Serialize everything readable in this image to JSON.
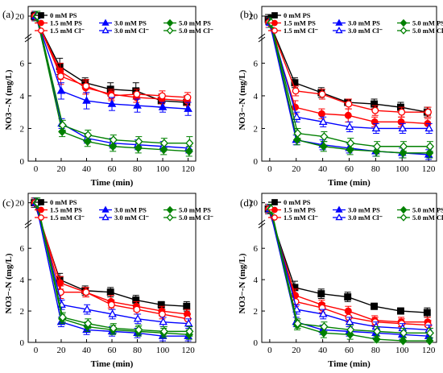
{
  "colors": {
    "0 mM PS": "#000000",
    "1.5": "#ff0000",
    "3.0": "#0000ff",
    "5.0": "#008000"
  },
  "chart_data": [
    {
      "type": "line",
      "panel_label": "(a)",
      "xlabel": "Time (min)",
      "ylabel": "NO3−-N (mg/L)",
      "x": [
        0,
        20,
        40,
        60,
        80,
        100,
        120
      ],
      "x_ticks": [
        "0",
        "20",
        "40",
        "60",
        "80",
        "100",
        "120"
      ],
      "y_ticks_lower": [
        "0",
        "2",
        "4",
        "6"
      ],
      "y_ticks_upper": [
        "20"
      ],
      "ylim_lower": [
        0,
        7.5
      ],
      "ylim_upper": [
        14,
        23
      ],
      "axis_break": true,
      "legend": "top",
      "series": [
        {
          "name": "0 mM PS",
          "color": "#000000",
          "marker": "square",
          "filled": true,
          "values": [
            20.0,
            5.8,
            4.8,
            4.4,
            4.3,
            3.7,
            3.6
          ],
          "err": [
            1.2,
            0.5,
            0.3,
            0.4,
            0.5,
            0.4,
            0.4
          ]
        },
        {
          "name": "1.5 mM PS",
          "color": "#ff0000",
          "marker": "circle",
          "filled": true,
          "values": [
            20.0,
            5.5,
            4.5,
            4.1,
            3.9,
            3.8,
            3.7
          ],
          "err": [
            1.5,
            0.5,
            0.4,
            0.3,
            0.3,
            0.3,
            0.3
          ]
        },
        {
          "name": "1.5 mM Cl⁻",
          "color": "#ff0000",
          "marker": "circle",
          "filled": false,
          "values": [
            20.0,
            5.2,
            4.6,
            4.0,
            4.1,
            4.0,
            3.9
          ],
          "err": [
            1.5,
            0.5,
            0.4,
            0.3,
            0.3,
            0.3,
            0.3
          ]
        },
        {
          "name": "3.0 mM PS",
          "color": "#0000ff",
          "marker": "triangle",
          "filled": true,
          "values": [
            20.0,
            4.3,
            3.7,
            3.5,
            3.4,
            3.3,
            3.2
          ],
          "err": [
            1.5,
            0.5,
            0.5,
            0.4,
            0.4,
            0.3,
            0.4
          ]
        },
        {
          "name": "3.0 mM Cl⁻",
          "color": "#0000ff",
          "marker": "triangle",
          "filled": false,
          "values": [
            20.0,
            2.3,
            1.4,
            1.1,
            1.0,
            0.9,
            0.8
          ],
          "err": [
            1.5,
            0.3,
            0.3,
            0.3,
            0.3,
            0.3,
            0.3
          ]
        },
        {
          "name": "5.0 mM PS",
          "color": "#008000",
          "marker": "diamond",
          "filled": true,
          "values": [
            20.0,
            1.8,
            1.2,
            0.9,
            0.8,
            0.7,
            0.6
          ],
          "err": [
            1.5,
            0.3,
            0.3,
            0.3,
            0.3,
            0.3,
            0.3
          ]
        },
        {
          "name": "5.0 mM Cl⁻",
          "color": "#008000",
          "marker": "diamond",
          "filled": false,
          "values": [
            20.0,
            2.2,
            1.6,
            1.3,
            1.2,
            1.1,
            1.1
          ],
          "err": [
            1.5,
            0.3,
            0.3,
            0.3,
            0.3,
            0.3,
            0.4
          ]
        }
      ]
    },
    {
      "type": "line",
      "panel_label": "(b)",
      "xlabel": "Time (min)",
      "ylabel": "NO3−-N (mg/L)",
      "x": [
        0,
        20,
        40,
        60,
        80,
        100,
        120
      ],
      "x_ticks": [
        "0",
        "20",
        "40",
        "60",
        "80",
        "100",
        "120"
      ],
      "y_ticks_lower": [
        "0",
        "2",
        "4",
        "6"
      ],
      "y_ticks_upper": [
        "20"
      ],
      "ylim_lower": [
        0,
        7.5
      ],
      "ylim_upper": [
        14,
        23
      ],
      "axis_break": true,
      "legend": "top",
      "series": [
        {
          "name": "0 mM PS",
          "color": "#000000",
          "marker": "square",
          "filled": true,
          "values": [
            19.0,
            4.8,
            4.2,
            3.6,
            3.5,
            3.3,
            3.0
          ],
          "err": [
            1.5,
            0.3,
            0.3,
            0.2,
            0.3,
            0.3,
            0.3
          ]
        },
        {
          "name": "1.5 mM PS",
          "color": "#ff0000",
          "marker": "circle",
          "filled": true,
          "values": [
            18.0,
            3.3,
            2.9,
            2.8,
            2.4,
            2.4,
            2.3
          ],
          "err": [
            1.5,
            0.4,
            0.3,
            0.4,
            0.3,
            0.3,
            0.3
          ]
        },
        {
          "name": "1.5 mM Cl⁻",
          "color": "#ff0000",
          "marker": "circle",
          "filled": false,
          "values": [
            18.0,
            4.3,
            4.1,
            3.5,
            3.1,
            3.0,
            3.0
          ],
          "err": [
            1.5,
            0.3,
            0.3,
            0.3,
            0.3,
            0.3,
            0.3
          ]
        },
        {
          "name": "3.0 mM PS",
          "color": "#0000ff",
          "marker": "triangle",
          "filled": true,
          "values": [
            18.0,
            1.3,
            1.0,
            0.8,
            0.6,
            0.5,
            0.4
          ],
          "err": [
            1.5,
            0.3,
            0.3,
            0.3,
            0.3,
            0.3,
            0.3
          ]
        },
        {
          "name": "3.0 mM Cl⁻",
          "color": "#0000ff",
          "marker": "triangle",
          "filled": false,
          "values": [
            18.0,
            2.7,
            2.4,
            2.1,
            2.0,
            2.0,
            2.0
          ],
          "err": [
            1.5,
            0.3,
            0.3,
            0.3,
            0.3,
            0.3,
            0.3
          ]
        },
        {
          "name": "5.0 mM PS",
          "color": "#008000",
          "marker": "diamond",
          "filled": true,
          "values": [
            18.0,
            1.3,
            0.9,
            0.7,
            0.6,
            0.5,
            0.5
          ],
          "err": [
            1.5,
            0.3,
            0.3,
            0.3,
            0.3,
            0.3,
            0.3
          ]
        },
        {
          "name": "5.0 mM Cl⁻",
          "color": "#008000",
          "marker": "diamond",
          "filled": false,
          "values": [
            18.0,
            1.7,
            1.5,
            1.1,
            0.9,
            0.9,
            0.9
          ],
          "err": [
            1.5,
            0.3,
            0.3,
            0.3,
            0.3,
            0.3,
            0.3
          ]
        }
      ]
    },
    {
      "type": "line",
      "panel_label": "(c)",
      "xlabel": "Time (min)",
      "ylabel": "NO3−-N (mg/L)",
      "x": [
        0,
        20,
        40,
        60,
        80,
        100,
        120
      ],
      "x_ticks": [
        "0",
        "20",
        "40",
        "60",
        "80",
        "100",
        "120"
      ],
      "y_ticks_lower": [
        "0",
        "2",
        "4",
        "6"
      ],
      "y_ticks_upper": [
        "20"
      ],
      "ylim_lower": [
        0,
        7.5
      ],
      "ylim_upper": [
        14,
        23
      ],
      "axis_break": true,
      "legend": "top",
      "series": [
        {
          "name": "0 mM PS",
          "color": "#000000",
          "marker": "square",
          "filled": true,
          "values": [
            20.0,
            4.0,
            3.3,
            3.2,
            2.7,
            2.4,
            2.3
          ],
          "err": [
            1.5,
            0.4,
            0.3,
            0.3,
            0.3,
            0.2,
            0.3
          ]
        },
        {
          "name": "1.5 mM PS",
          "color": "#ff0000",
          "marker": "circle",
          "filled": true,
          "values": [
            20.0,
            3.8,
            3.2,
            2.6,
            2.3,
            2.0,
            1.8
          ],
          "err": [
            1.5,
            0.4,
            0.3,
            0.4,
            0.3,
            0.3,
            0.3
          ]
        },
        {
          "name": "1.5 mM Cl⁻",
          "color": "#ff0000",
          "marker": "circle",
          "filled": false,
          "values": [
            20.0,
            3.2,
            3.2,
            2.4,
            2.1,
            1.8,
            1.5
          ],
          "err": [
            1.5,
            0.4,
            0.3,
            0.3,
            0.3,
            0.3,
            0.3
          ]
        },
        {
          "name": "3.0 mM PS",
          "color": "#0000ff",
          "marker": "triangle",
          "filled": true,
          "values": [
            20.0,
            1.3,
            0.8,
            0.7,
            0.6,
            0.4,
            0.4
          ],
          "err": [
            1.5,
            0.3,
            0.3,
            0.3,
            0.3,
            0.3,
            0.3
          ]
        },
        {
          "name": "3.0 mM Cl⁻",
          "color": "#0000ff",
          "marker": "triangle",
          "filled": false,
          "values": [
            20.0,
            2.4,
            2.1,
            1.8,
            1.5,
            1.3,
            1.2
          ],
          "err": [
            1.5,
            0.3,
            0.3,
            0.3,
            0.3,
            0.3,
            0.3
          ]
        },
        {
          "name": "5.0 mM PS",
          "color": "#008000",
          "marker": "diamond",
          "filled": true,
          "values": [
            20.0,
            1.5,
            1.0,
            0.8,
            0.7,
            0.6,
            0.5
          ],
          "err": [
            1.5,
            0.3,
            0.3,
            0.3,
            0.3,
            0.3,
            0.3
          ]
        },
        {
          "name": "5.0 mM Cl⁻",
          "color": "#008000",
          "marker": "diamond",
          "filled": false,
          "values": [
            20.0,
            1.6,
            1.2,
            0.9,
            0.8,
            0.7,
            0.7
          ],
          "err": [
            1.5,
            0.3,
            0.3,
            0.3,
            0.3,
            0.3,
            0.3
          ]
        }
      ]
    },
    {
      "type": "line",
      "panel_label": "(d)",
      "xlabel": "Time (min)",
      "ylabel": "NO3−-N (mg/L)",
      "x": [
        0,
        20,
        40,
        60,
        80,
        100,
        120
      ],
      "x_ticks": [
        "0",
        "20",
        "40",
        "60",
        "80",
        "100",
        "120"
      ],
      "y_ticks_lower": [
        "0",
        "2",
        "4",
        "6"
      ],
      "y_ticks_upper": [
        "20"
      ],
      "ylim_lower": [
        0,
        7.5
      ],
      "ylim_upper": [
        14,
        23
      ],
      "axis_break": true,
      "legend": "top",
      "series": [
        {
          "name": "0 mM PS",
          "color": "#000000",
          "marker": "square",
          "filled": true,
          "values": [
            18.0,
            3.5,
            3.1,
            2.9,
            2.3,
            2.0,
            1.9
          ],
          "err": [
            1.5,
            0.4,
            0.3,
            0.3,
            0.2,
            0.2,
            0.3
          ]
        },
        {
          "name": "1.5 mM PS",
          "color": "#ff0000",
          "marker": "circle",
          "filled": true,
          "values": [
            18.0,
            3.0,
            2.4,
            2.0,
            1.4,
            1.3,
            1.3
          ],
          "err": [
            1.5,
            0.4,
            0.3,
            0.3,
            0.3,
            0.3,
            0.3
          ]
        },
        {
          "name": "1.5 mM Cl⁻",
          "color": "#ff0000",
          "marker": "circle",
          "filled": false,
          "values": [
            18.0,
            2.6,
            2.2,
            1.6,
            1.3,
            1.2,
            1.1
          ],
          "err": [
            1.5,
            0.3,
            0.3,
            0.3,
            0.3,
            0.3,
            0.3
          ]
        },
        {
          "name": "3.0 mM PS",
          "color": "#0000ff",
          "marker": "triangle",
          "filled": true,
          "values": [
            18.0,
            1.3,
            0.8,
            0.7,
            0.6,
            0.5,
            0.4
          ],
          "err": [
            1.5,
            0.3,
            0.3,
            0.3,
            0.3,
            0.3,
            0.3
          ]
        },
        {
          "name": "3.0 mM Cl⁻",
          "color": "#0000ff",
          "marker": "triangle",
          "filled": false,
          "values": [
            18.0,
            2.1,
            1.8,
            1.3,
            1.0,
            0.9,
            0.8
          ],
          "err": [
            1.5,
            0.3,
            0.3,
            0.3,
            0.3,
            0.3,
            0.3
          ]
        },
        {
          "name": "5.0 mM PS",
          "color": "#008000",
          "marker": "diamond",
          "filled": true,
          "values": [
            18.0,
            1.1,
            0.6,
            0.5,
            0.2,
            0.1,
            0.1
          ],
          "err": [
            1.5,
            0.3,
            0.3,
            0.3,
            0.2,
            0.2,
            0.2
          ]
        },
        {
          "name": "5.0 mM Cl⁻",
          "color": "#008000",
          "marker": "diamond",
          "filled": false,
          "values": [
            18.0,
            1.2,
            1.0,
            0.8,
            0.7,
            0.6,
            0.6
          ],
          "err": [
            1.5,
            0.3,
            0.3,
            0.3,
            0.3,
            0.3,
            0.3
          ]
        }
      ]
    }
  ]
}
